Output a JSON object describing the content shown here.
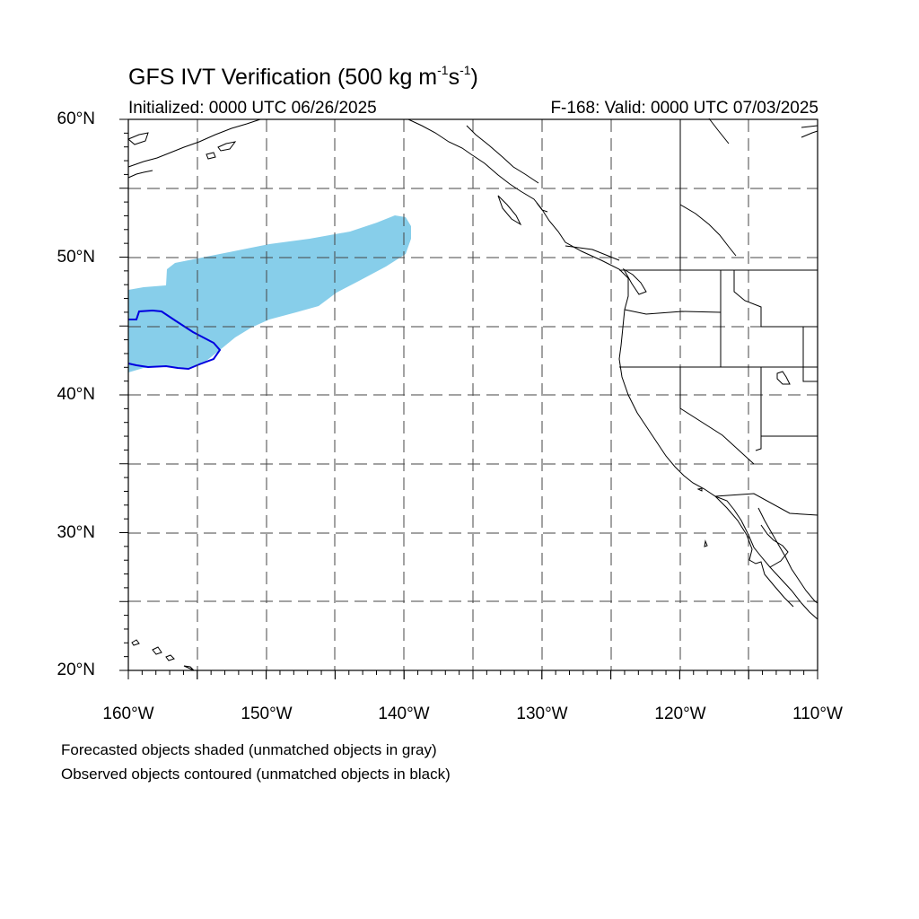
{
  "title": {
    "main": "GFS IVT Verification (500 kg m",
    "sup1": "-1",
    "mid": "s",
    "sup2": "-1",
    "end": ")"
  },
  "subtitle": {
    "initialized": "Initialized: 0000 UTC 06/26/2025",
    "valid": "F-168: Valid: 0000 UTC 07/03/2025"
  },
  "map": {
    "lat_range": [
      20,
      60
    ],
    "lon_range": [
      -160,
      -110
    ],
    "grid_dashed": true,
    "lat_labels": [
      "60°N",
      "50°N",
      "40°N",
      "30°N",
      "20°N"
    ],
    "lon_labels": [
      "160°W",
      "150°W",
      "140°W",
      "130°W",
      "120°W",
      "110°W"
    ],
    "colors": {
      "forecast_fill": "#87ceea",
      "observed_contour": "#0000e0",
      "coastline": "#000000",
      "grid": "#444444"
    }
  },
  "notes": {
    "forecast": "Forecasted objects shaded (unmatched objects in gray)",
    "observed": "Observed objects contoured (unmatched objects in black)"
  }
}
